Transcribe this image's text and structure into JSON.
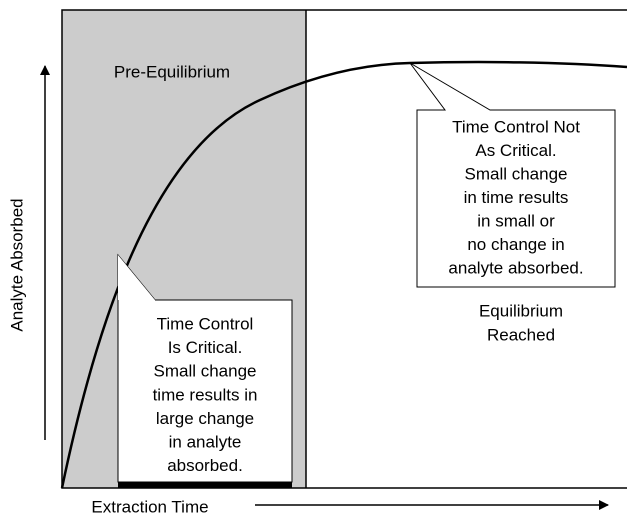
{
  "diagram": {
    "region_label": "Pre-Equilibrium",
    "equilibrium_label": [
      "Equilibrium",
      "Reached"
    ],
    "y_axis_label": "Analyte Absorbed",
    "x_axis_label": "Extraction Time",
    "callout_critical": [
      "Time Control",
      "Is Critical.",
      "Small change",
      "time results in",
      "large change",
      "in analyte",
      "absorbed."
    ],
    "callout_not_critical": [
      "Time Control Not",
      "As Critical.",
      "Small change",
      "in time results",
      "in small or",
      "no change in",
      "analyte absorbed."
    ]
  }
}
